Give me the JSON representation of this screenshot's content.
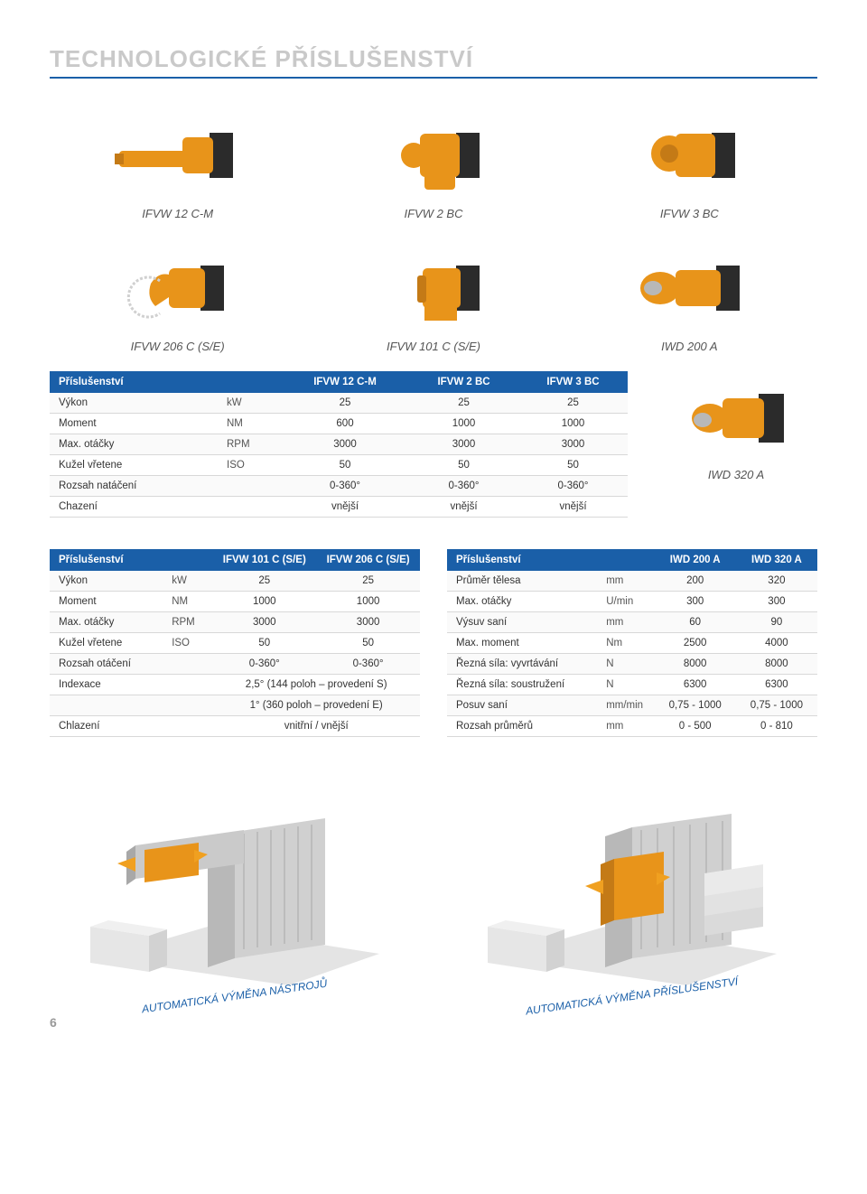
{
  "page_title": "TECHNOLOGICKÉ PŘÍSLUŠENSTVÍ",
  "page_number": "6",
  "colors": {
    "header_blue": "#1a5fa8",
    "title_gray": "#c9c9c9",
    "machine_orange": "#e8941a",
    "machine_dark": "#2b2b2b",
    "machine_shadow": "#c4c4c4",
    "iso_gray": "#d8d8d8",
    "iso_dark": "#a8a8a8"
  },
  "products_row1": [
    {
      "label": "IFVW 12 C-M"
    },
    {
      "label": "IFVW 2 BC"
    },
    {
      "label": "IFVW 3 BC"
    }
  ],
  "products_row2": [
    {
      "label": "IFVW 206 C (S/E)"
    },
    {
      "label": "IFVW 101 C (S/E)"
    },
    {
      "label": "IWD 200 A"
    }
  ],
  "side_product": {
    "label": "IWD 320 A"
  },
  "table1": {
    "head": [
      "Příslušenství",
      "",
      "IFVW 12 C-M",
      "IFVW 2 BC",
      "IFVW 3 BC"
    ],
    "rows": [
      [
        "Výkon",
        "kW",
        "25",
        "25",
        "25"
      ],
      [
        "Moment",
        "NM",
        "600",
        "1000",
        "1000"
      ],
      [
        "Max. otáčky",
        "RPM",
        "3000",
        "3000",
        "3000"
      ],
      [
        "Kužel vřetene",
        "ISO",
        "50",
        "50",
        "50"
      ],
      [
        "Rozsah natáčení",
        "",
        "0-360°",
        "0-360°",
        "0-360°"
      ],
      [
        "Chazení",
        "",
        "vnější",
        "vnější",
        "vnější"
      ]
    ]
  },
  "table2": {
    "head": [
      "Příslušenství",
      "",
      "IFVW 101 C (S/E)",
      "IFVW 206 C (S/E)"
    ],
    "rows": [
      [
        "Výkon",
        "kW",
        "25",
        "25"
      ],
      [
        "Moment",
        "NM",
        "1000",
        "1000"
      ],
      [
        "Max. otáčky",
        "RPM",
        "3000",
        "3000"
      ],
      [
        "Kužel vřetene",
        "ISO",
        "50",
        "50"
      ],
      [
        "Rozsah otáčení",
        "",
        "0-360°",
        "0-360°"
      ],
      [
        "Indexace",
        "",
        "2,5° (144 poloh – provedení S)",
        ""
      ],
      [
        "",
        "",
        "1° (360 poloh – provedení E)",
        ""
      ],
      [
        "Chlazení",
        "",
        "vnitřní / vnější",
        ""
      ]
    ],
    "merge_last3_cols": true
  },
  "table3": {
    "head": [
      "Příslušenství",
      "",
      "IWD 200 A",
      "IWD 320 A"
    ],
    "rows": [
      [
        "Průměr tělesa",
        "mm",
        "200",
        "320"
      ],
      [
        "Max. otáčky",
        "U/min",
        "300",
        "300"
      ],
      [
        "Výsuv saní",
        "mm",
        "60",
        "90"
      ],
      [
        "Max. moment",
        "Nm",
        "2500",
        "4000"
      ],
      [
        "Řezná síla: vyvrtávání",
        "N",
        "8000",
        "8000"
      ],
      [
        "Řezná síla: soustružení",
        "N",
        "6300",
        "6300"
      ],
      [
        "Posuv saní",
        "mm/min",
        "0,75 - 1000",
        "0,75 - 1000"
      ],
      [
        "Rozsah průměrů",
        "mm",
        "0 - 500",
        "0 - 810"
      ]
    ]
  },
  "bottom_captions": [
    "AUTOMATICKÁ VÝMĚNA NÁSTROJŮ",
    "AUTOMATICKÁ VÝMĚNA PŘÍSLUŠENSTVÍ"
  ]
}
